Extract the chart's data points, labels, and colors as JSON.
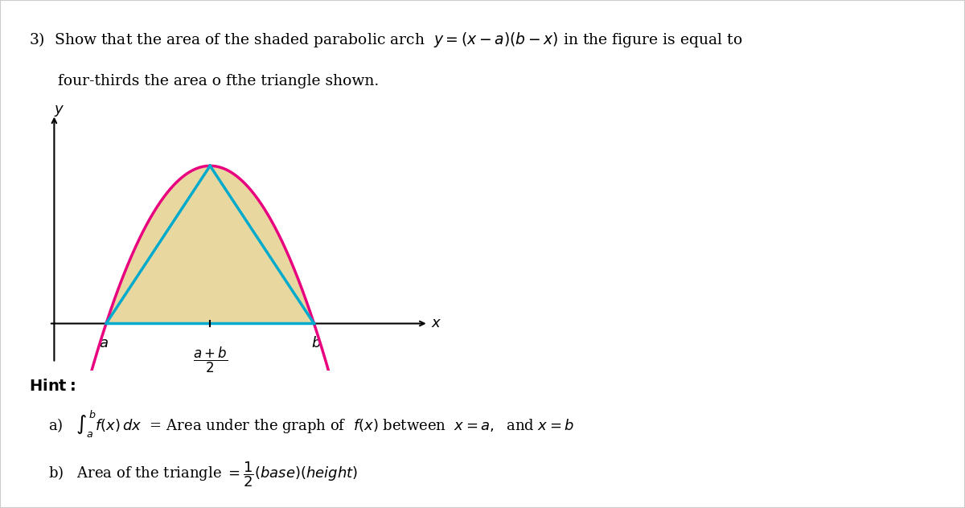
{
  "bg_color": "#ffffff",
  "border_color": "#cccccc",
  "title_line1": "3)  Show that the area of the shaded parabolic arch  $y=(x-a)(b-x)$ in the figure is equal to",
  "title_line2": "four-thirds the area o fthe triangle shown.",
  "parabola_color": "#e8007f",
  "triangle_color": "#00aacc",
  "fill_color": "#e8d8a0",
  "axis_color": "#000000",
  "a_val": 1.0,
  "b_val": 5.0,
  "hint_label": "Hint:",
  "hint_a": "a)   $\\int_{a}^{b} f(x)dx$  = Area under the graph of  $f(x)$ between  $x=a,$  and $x=b$",
  "hint_b": "b)   Area of the triangle $= \\dfrac{1}{2}(base)(height)$"
}
